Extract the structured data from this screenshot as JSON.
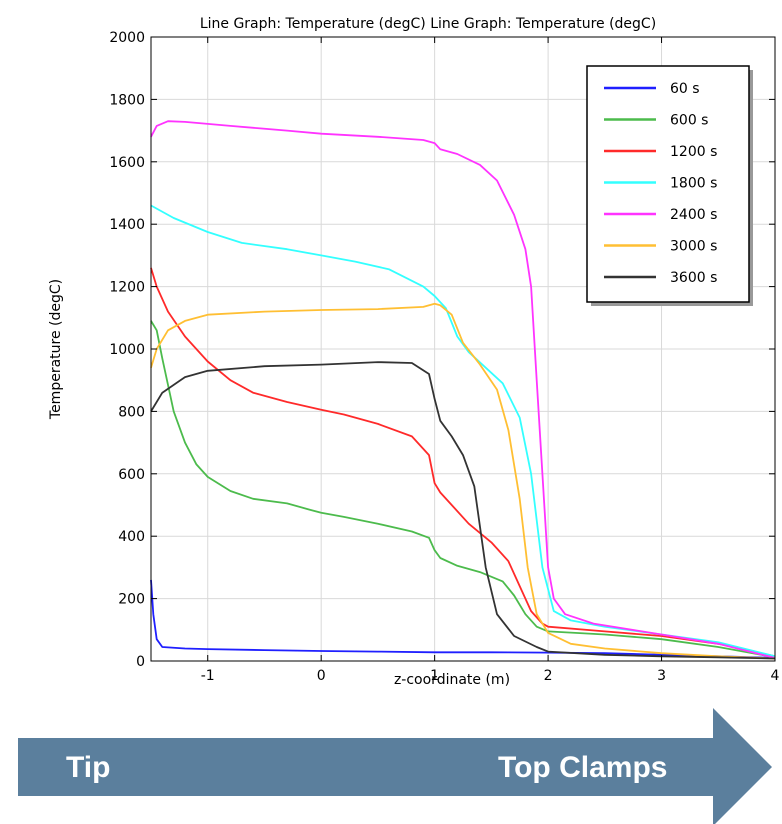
{
  "chart_data": {
    "type": "line",
    "title": "Line Graph: Temperature (degC)  Line Graph: Temperature (degC)",
    "xlabel": "z-coordinate (m)",
    "ylabel": "Temperature (degC)",
    "xlim": [
      -1.5,
      4
    ],
    "ylim": [
      0,
      2000
    ],
    "xticks": [
      -1,
      0,
      1,
      2,
      3,
      4
    ],
    "yticks": [
      0,
      200,
      400,
      600,
      800,
      1000,
      1200,
      1400,
      1600,
      1800,
      2000
    ],
    "grid": true,
    "legend_position": "top-right",
    "series": [
      {
        "name": "60 s",
        "color": "#1f1fff",
        "points": [
          [
            -1.5,
            260
          ],
          [
            -1.48,
            150
          ],
          [
            -1.45,
            70
          ],
          [
            -1.4,
            45
          ],
          [
            -1.2,
            40
          ],
          [
            -1,
            38
          ],
          [
            -0.5,
            35
          ],
          [
            0,
            32
          ],
          [
            0.5,
            30
          ],
          [
            1,
            28
          ],
          [
            1.5,
            28
          ],
          [
            2,
            27
          ],
          [
            2.5,
            25
          ],
          [
            3,
            20
          ],
          [
            3.5,
            15
          ],
          [
            4,
            10
          ]
        ]
      },
      {
        "name": "600 s",
        "color": "#4cbb4c",
        "points": [
          [
            -1.5,
            1090
          ],
          [
            -1.45,
            1060
          ],
          [
            -1.4,
            970
          ],
          [
            -1.3,
            800
          ],
          [
            -1.2,
            700
          ],
          [
            -1.1,
            630
          ],
          [
            -1,
            590
          ],
          [
            -0.8,
            545
          ],
          [
            -0.6,
            520
          ],
          [
            -0.3,
            505
          ],
          [
            -0.1,
            485
          ],
          [
            0,
            475
          ],
          [
            0.2,
            462
          ],
          [
            0.5,
            440
          ],
          [
            0.8,
            415
          ],
          [
            0.95,
            395
          ],
          [
            1.0,
            355
          ],
          [
            1.05,
            330
          ],
          [
            1.2,
            305
          ],
          [
            1.4,
            285
          ],
          [
            1.6,
            255
          ],
          [
            1.7,
            210
          ],
          [
            1.8,
            150
          ],
          [
            1.9,
            110
          ],
          [
            2.0,
            95
          ],
          [
            2.5,
            85
          ],
          [
            3,
            70
          ],
          [
            3.5,
            45
          ],
          [
            4,
            12
          ]
        ]
      },
      {
        "name": "1200 s",
        "color": "#ff2a2a",
        "points": [
          [
            -1.5,
            1260
          ],
          [
            -1.45,
            1200
          ],
          [
            -1.35,
            1120
          ],
          [
            -1.2,
            1040
          ],
          [
            -1.0,
            960
          ],
          [
            -0.8,
            900
          ],
          [
            -0.6,
            860
          ],
          [
            -0.3,
            830
          ],
          [
            0,
            805
          ],
          [
            0.2,
            790
          ],
          [
            0.5,
            760
          ],
          [
            0.8,
            720
          ],
          [
            0.95,
            660
          ],
          [
            1.0,
            570
          ],
          [
            1.05,
            540
          ],
          [
            1.15,
            500
          ],
          [
            1.3,
            440
          ],
          [
            1.5,
            380
          ],
          [
            1.65,
            320
          ],
          [
            1.75,
            240
          ],
          [
            1.85,
            160
          ],
          [
            1.95,
            120
          ],
          [
            2.0,
            110
          ],
          [
            2.5,
            95
          ],
          [
            3,
            80
          ],
          [
            3.5,
            55
          ],
          [
            4,
            15
          ]
        ]
      },
      {
        "name": "1800 s",
        "color": "#33ffff",
        "points": [
          [
            -1.5,
            1460
          ],
          [
            -1.3,
            1420
          ],
          [
            -1.0,
            1375
          ],
          [
            -0.7,
            1340
          ],
          [
            -0.3,
            1320
          ],
          [
            0,
            1300
          ],
          [
            0.3,
            1280
          ],
          [
            0.6,
            1255
          ],
          [
            0.9,
            1200
          ],
          [
            1.0,
            1170
          ],
          [
            1.1,
            1130
          ],
          [
            1.2,
            1040
          ],
          [
            1.3,
            990
          ],
          [
            1.45,
            940
          ],
          [
            1.6,
            890
          ],
          [
            1.75,
            780
          ],
          [
            1.85,
            600
          ],
          [
            1.95,
            300
          ],
          [
            2.05,
            160
          ],
          [
            2.2,
            130
          ],
          [
            2.5,
            110
          ],
          [
            3,
            85
          ],
          [
            3.5,
            60
          ],
          [
            4,
            15
          ]
        ]
      },
      {
        "name": "2400 s",
        "color": "#ff33ff",
        "points": [
          [
            -1.5,
            1680
          ],
          [
            -1.45,
            1715
          ],
          [
            -1.35,
            1730
          ],
          [
            -1.2,
            1728
          ],
          [
            -0.8,
            1715
          ],
          [
            -0.3,
            1700
          ],
          [
            0,
            1690
          ],
          [
            0.5,
            1680
          ],
          [
            0.9,
            1670
          ],
          [
            1.0,
            1660
          ],
          [
            1.05,
            1640
          ],
          [
            1.2,
            1625
          ],
          [
            1.4,
            1590
          ],
          [
            1.55,
            1540
          ],
          [
            1.7,
            1430
          ],
          [
            1.8,
            1320
          ],
          [
            1.85,
            1200
          ],
          [
            1.9,
            900
          ],
          [
            1.95,
            600
          ],
          [
            2.0,
            300
          ],
          [
            2.05,
            200
          ],
          [
            2.15,
            150
          ],
          [
            2.4,
            120
          ],
          [
            3,
            85
          ],
          [
            3.5,
            55
          ],
          [
            4,
            10
          ]
        ]
      },
      {
        "name": "3000 s",
        "color": "#ffbf33",
        "points": [
          [
            -1.5,
            940
          ],
          [
            -1.45,
            1000
          ],
          [
            -1.35,
            1060
          ],
          [
            -1.2,
            1090
          ],
          [
            -1.0,
            1110
          ],
          [
            -0.5,
            1120
          ],
          [
            0,
            1125
          ],
          [
            0.5,
            1128
          ],
          [
            0.9,
            1135
          ],
          [
            1.0,
            1145
          ],
          [
            1.05,
            1140
          ],
          [
            1.15,
            1110
          ],
          [
            1.25,
            1020
          ],
          [
            1.4,
            950
          ],
          [
            1.55,
            870
          ],
          [
            1.65,
            740
          ],
          [
            1.75,
            520
          ],
          [
            1.82,
            300
          ],
          [
            1.9,
            150
          ],
          [
            2.0,
            90
          ],
          [
            2.2,
            55
          ],
          [
            2.5,
            40
          ],
          [
            3,
            25
          ],
          [
            3.5,
            15
          ],
          [
            4,
            8
          ]
        ]
      },
      {
        "name": "3600 s",
        "color": "#333333",
        "points": [
          [
            -1.5,
            800
          ],
          [
            -1.4,
            860
          ],
          [
            -1.2,
            910
          ],
          [
            -1.0,
            930
          ],
          [
            -0.5,
            945
          ],
          [
            0,
            950
          ],
          [
            0.5,
            958
          ],
          [
            0.8,
            955
          ],
          [
            0.95,
            920
          ],
          [
            1.0,
            840
          ],
          [
            1.05,
            770
          ],
          [
            1.15,
            720
          ],
          [
            1.25,
            660
          ],
          [
            1.35,
            560
          ],
          [
            1.45,
            300
          ],
          [
            1.55,
            150
          ],
          [
            1.7,
            80
          ],
          [
            1.9,
            45
          ],
          [
            2.0,
            30
          ],
          [
            2.5,
            20
          ],
          [
            3,
            15
          ],
          [
            3.5,
            12
          ],
          [
            4,
            8
          ]
        ]
      }
    ]
  },
  "arrow": {
    "left_label": "Tip",
    "right_label": "Top Clamps",
    "color": "#5b7f9d"
  }
}
